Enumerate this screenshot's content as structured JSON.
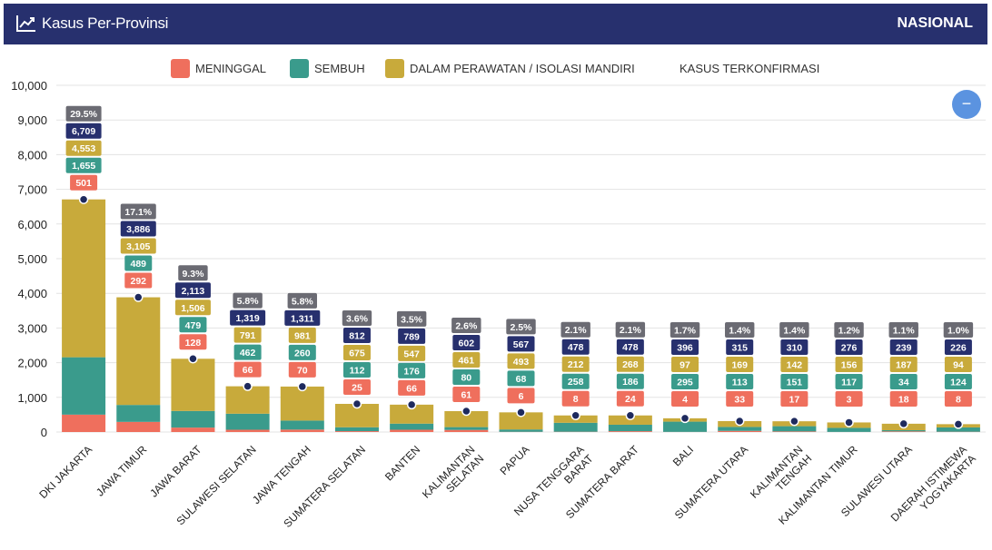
{
  "header": {
    "title": "Kasus Per-Provinsi",
    "region": "NASIONAL",
    "icon": "line-chart-icon"
  },
  "legend": {
    "meninggal": "MENINGGAL",
    "sembuh": "SEMBUH",
    "perawatan": "DALAM PERAWATAN / ISOLASI MANDIRI",
    "terkonfirmasi": "KASUS TERKONFIRMASI"
  },
  "zoom_button": {
    "label": "−",
    "icon": "minus-icon"
  },
  "colors": {
    "meninggal": "#ef6f5d",
    "sembuh": "#3a9b8c",
    "perawatan": "#c8aa3b",
    "terkonfirmasi": "#27306e",
    "percent": "#6b6b73",
    "header": "#27306e",
    "marker": "#1e2a5e"
  },
  "chart_data": {
    "type": "bar",
    "stacked": true,
    "ylim": [
      0,
      10000
    ],
    "yticks": [
      "0",
      "1,000",
      "2,000",
      "3,000",
      "4,000",
      "5,000",
      "6,000",
      "7,000",
      "8,000",
      "9,000",
      "10,000"
    ],
    "ytick_values": [
      0,
      1000,
      2000,
      3000,
      4000,
      5000,
      6000,
      7000,
      8000,
      9000,
      10000
    ],
    "grid": true,
    "legend_position": "top",
    "categories": [
      [
        "DKI JAKARTA"
      ],
      [
        "JAWA TIMUR"
      ],
      [
        "JAWA BARAT"
      ],
      [
        "SULAWESI SELATAN"
      ],
      [
        "JAWA TENGAH"
      ],
      [
        "SUMATERA SELATAN"
      ],
      [
        "BANTEN"
      ],
      [
        "KALIMANTAN",
        "SELATAN"
      ],
      [
        "PAPUA"
      ],
      [
        "NUSA TENGGARA",
        "BARAT"
      ],
      [
        "SUMATERA BARAT"
      ],
      [
        "BALI"
      ],
      [
        "SUMATERA UTARA"
      ],
      [
        "KALIMANTAN",
        "TENGAH"
      ],
      [
        "KALIMANTAN TIMUR"
      ],
      [
        "SULAWESI UTARA"
      ],
      [
        "DAERAH ISTIMEWA",
        "YOGYAKARTA"
      ]
    ],
    "series": [
      {
        "name": "MENINGGAL",
        "key": "meninggal",
        "values": [
          501,
          292,
          128,
          66,
          70,
          25,
          66,
          61,
          6,
          8,
          24,
          4,
          33,
          17,
          3,
          18,
          8
        ],
        "labels": [
          "501",
          "292",
          "128",
          "66",
          "70",
          "25",
          "66",
          "61",
          "6",
          "8",
          "24",
          "4",
          "33",
          "17",
          "3",
          "18",
          "8"
        ]
      },
      {
        "name": "SEMBUH",
        "key": "sembuh",
        "values": [
          1655,
          489,
          479,
          462,
          260,
          112,
          176,
          80,
          68,
          258,
          186,
          295,
          113,
          151,
          117,
          34,
          124
        ],
        "labels": [
          "1,655",
          "489",
          "479",
          "462",
          "260",
          "112",
          "176",
          "80",
          "68",
          "258",
          "186",
          "295",
          "113",
          "151",
          "117",
          "34",
          "124"
        ]
      },
      {
        "name": "DALAM PERAWATAN / ISOLASI MANDIRI",
        "key": "perawatan",
        "values": [
          4553,
          3105,
          1506,
          791,
          981,
          675,
          547,
          461,
          493,
          212,
          268,
          97,
          169,
          142,
          156,
          187,
          94
        ],
        "labels": [
          "4,553",
          "3,105",
          "1,506",
          "791",
          "981",
          "675",
          "547",
          "461",
          "493",
          "212",
          "268",
          "97",
          "169",
          "142",
          "156",
          "187",
          "94"
        ]
      }
    ],
    "confirmed": {
      "name": "KASUS TERKONFIRMASI",
      "values": [
        6709,
        3886,
        2113,
        1319,
        1311,
        812,
        789,
        602,
        567,
        478,
        478,
        396,
        315,
        310,
        276,
        239,
        226
      ],
      "labels": [
        "6,709",
        "3,886",
        "2,113",
        "1,319",
        "1,311",
        "812",
        "789",
        "602",
        "567",
        "478",
        "478",
        "396",
        "315",
        "310",
        "276",
        "239",
        "226"
      ]
    },
    "percent_labels": [
      "29.5%",
      "17.1%",
      "9.3%",
      "5.8%",
      "5.8%",
      "3.6%",
      "3.5%",
      "2.6%",
      "2.5%",
      "2.1%",
      "2.1%",
      "1.7%",
      "1.4%",
      "1.4%",
      "1.2%",
      "1.1%",
      "1.0%"
    ]
  }
}
